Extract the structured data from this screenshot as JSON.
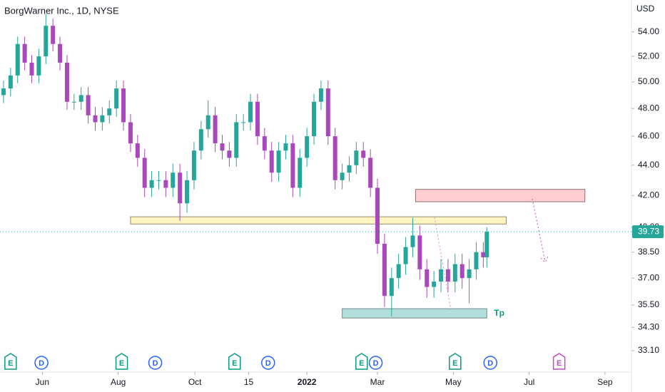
{
  "chart_data": {
    "type": "candlestick",
    "title": "BorgWarner Inc., 1D, NYSE",
    "currency": "USD",
    "log_scale": true,
    "up_color": "#26a69a",
    "down_color": "#ab47bc",
    "x": [
      2,
      6,
      10,
      14,
      18,
      22,
      26,
      30,
      34,
      38,
      42,
      46,
      50,
      54,
      58,
      62,
      66,
      70,
      74,
      78,
      82,
      86,
      90,
      94,
      98,
      102,
      106,
      110,
      114,
      118,
      122,
      126,
      130,
      134,
      138,
      142,
      146,
      150,
      154,
      158,
      162,
      166,
      170,
      174,
      178,
      182,
      186,
      190,
      194,
      198,
      202,
      206,
      210,
      214,
      218,
      222,
      226,
      230,
      234,
      238,
      242,
      246,
      250,
      254,
      258,
      262,
      266,
      270,
      274,
      276
    ],
    "open": [
      49,
      49.5,
      50.5,
      53,
      51.5,
      50.5,
      52,
      54.5,
      53,
      51.5,
      48.5,
      48.5,
      49,
      47.5,
      47,
      47.5,
      48,
      49.5,
      47,
      45.5,
      44.5,
      42.5,
      43,
      43,
      42.5,
      43.5,
      41.5,
      43,
      45,
      46.5,
      47.5,
      45.5,
      45,
      44.5,
      47,
      47,
      48.5,
      46,
      45,
      43.5,
      45,
      45.5,
      42.5,
      44.5,
      46,
      48.5,
      49.5,
      46,
      43,
      43.5,
      44,
      45,
      44.5,
      42.5,
      39,
      36,
      37,
      37.8,
      38.8,
      39.5,
      37.5,
      36.5,
      36.8,
      37.5,
      36.8,
      37.8,
      37,
      37.5,
      38.5,
      38.2
    ],
    "high": [
      50.1,
      51.1,
      53.6,
      53.6,
      52.1,
      52.6,
      55.5,
      55.1,
      53.6,
      52.1,
      49.1,
      49.6,
      49.6,
      48.1,
      48.1,
      48.6,
      50.1,
      50.1,
      47.6,
      46.1,
      45.1,
      43.6,
      43.6,
      43.6,
      44.1,
      44.1,
      43.6,
      45.6,
      47.1,
      48.6,
      48.1,
      46.1,
      45.6,
      47.6,
      47.6,
      49.1,
      49.1,
      46.6,
      45.6,
      45.6,
      46.1,
      46.1,
      45.1,
      46.6,
      49.1,
      50.1,
      50.1,
      46.6,
      44.1,
      44.6,
      45.6,
      45.6,
      45.1,
      43.1,
      39.6,
      37.6,
      38.4,
      39.4,
      40.6,
      40.1,
      38.1,
      37.4,
      38.1,
      38.1,
      38.4,
      38.4,
      38.1,
      39.1,
      39.1,
      40.0
    ],
    "low": [
      48.4,
      48.9,
      49.9,
      50.9,
      49.9,
      49.9,
      51.4,
      52.4,
      50.9,
      47.9,
      47.9,
      47.9,
      46.9,
      46.4,
      46.4,
      46.9,
      47.4,
      46.4,
      44.9,
      43.9,
      41.9,
      41.9,
      42.4,
      41.9,
      41.9,
      40.4,
      40.9,
      42.4,
      44.4,
      45.9,
      44.9,
      44.4,
      43.9,
      43.9,
      46.4,
      46.4,
      45.4,
      44.4,
      42.9,
      42.9,
      44.4,
      41.9,
      41.9,
      43.9,
      45.4,
      47.9,
      45.4,
      42.4,
      42.4,
      42.9,
      43.4,
      43.9,
      41.9,
      38.4,
      35.4,
      34.9,
      36.4,
      37.2,
      38.2,
      36.9,
      35.9,
      35.9,
      36.2,
      36.2,
      36.2,
      36.4,
      35.6,
      36.9,
      37.6,
      37.6
    ],
    "close": [
      49.5,
      50.5,
      53,
      51.5,
      50.5,
      52,
      54.5,
      53,
      51.5,
      48.5,
      48.5,
      49,
      47.5,
      47,
      47.5,
      48,
      49.5,
      47,
      45.5,
      44.5,
      42.5,
      43,
      43,
      42.5,
      43.5,
      41.5,
      43,
      45,
      46.5,
      47.5,
      45.5,
      45,
      44.5,
      47,
      47,
      48.5,
      46,
      45,
      43.5,
      45,
      45.5,
      42.5,
      44.5,
      46,
      48.5,
      49.5,
      46,
      43,
      43.5,
      44,
      45,
      44.5,
      42.5,
      39,
      36,
      37,
      37.8,
      38.8,
      39.5,
      37.5,
      36.5,
      36.8,
      37.5,
      36.8,
      37.8,
      37,
      37.5,
      38.5,
      38.2,
      39.73
    ],
    "xlim": [
      0,
      358
    ],
    "xticks": [
      {
        "value": 24,
        "label": "Jun"
      },
      {
        "value": 67,
        "label": "Aug"
      },
      {
        "value": 110.5,
        "label": "Oct"
      },
      {
        "value": 141,
        "label": "15"
      },
      {
        "value": 174,
        "label": "2022"
      },
      {
        "value": 214,
        "label": "Mar"
      },
      {
        "value": 257,
        "label": "May"
      },
      {
        "value": 300,
        "label": "Jul"
      },
      {
        "value": 343,
        "label": "Sep"
      }
    ],
    "ylim": [
      32.1,
      56.7
    ],
    "yticks": [
      {
        "value": 54,
        "label": "54.00"
      },
      {
        "value": 52,
        "label": "52.00"
      },
      {
        "value": 50,
        "label": "50.00"
      },
      {
        "value": 48,
        "label": "48.00"
      },
      {
        "value": 46,
        "label": "46.00"
      },
      {
        "value": 44,
        "label": "44.00"
      },
      {
        "value": 42,
        "label": "42.00"
      },
      {
        "value": 40,
        "label": "40.00"
      },
      {
        "value": 38.5,
        "label": "38.50"
      },
      {
        "value": 37,
        "label": "37.00"
      },
      {
        "value": 35.5,
        "label": "35.50"
      },
      {
        "value": 34.3,
        "label": "34.30"
      },
      {
        "value": 33.1,
        "label": "33.10"
      }
    ],
    "zones": [
      {
        "x": [
          74,
          287
        ],
        "y": [
          40.2,
          40.65
        ],
        "fill": "#fff4c2",
        "stroke": "#8d8d6a"
      },
      {
        "x": [
          235.6,
          331.6
        ],
        "y": [
          41.6,
          42.4
        ],
        "fill": "#ffcdd2",
        "stroke": "#8d7070"
      },
      {
        "x": [
          194,
          276
        ],
        "y": [
          34.8,
          35.3
        ],
        "fill": "#b2dfdb",
        "stroke": "#6a8d8a",
        "label": "Tp"
      }
    ],
    "events": [
      {
        "label": "E",
        "x": 6,
        "color": "#089981"
      },
      {
        "label": "D",
        "x": 23.5,
        "color": "#2962ff"
      },
      {
        "label": "E",
        "x": 69,
        "color": "#089981"
      },
      {
        "label": "D",
        "x": 88,
        "color": "#2962ff"
      },
      {
        "label": "E",
        "x": 133,
        "color": "#089981"
      },
      {
        "label": "D",
        "x": 152,
        "color": "#2962ff"
      },
      {
        "label": "E",
        "x": 205,
        "color": "#089981"
      },
      {
        "label": "D",
        "x": 213,
        "color": "#2962ff"
      },
      {
        "label": "E",
        "x": 258,
        "color": "#089981"
      },
      {
        "label": "D",
        "x": 278,
        "color": "#2962ff"
      },
      {
        "label": "E",
        "x": 317,
        "color": "#c548c5"
      }
    ]
  }
}
